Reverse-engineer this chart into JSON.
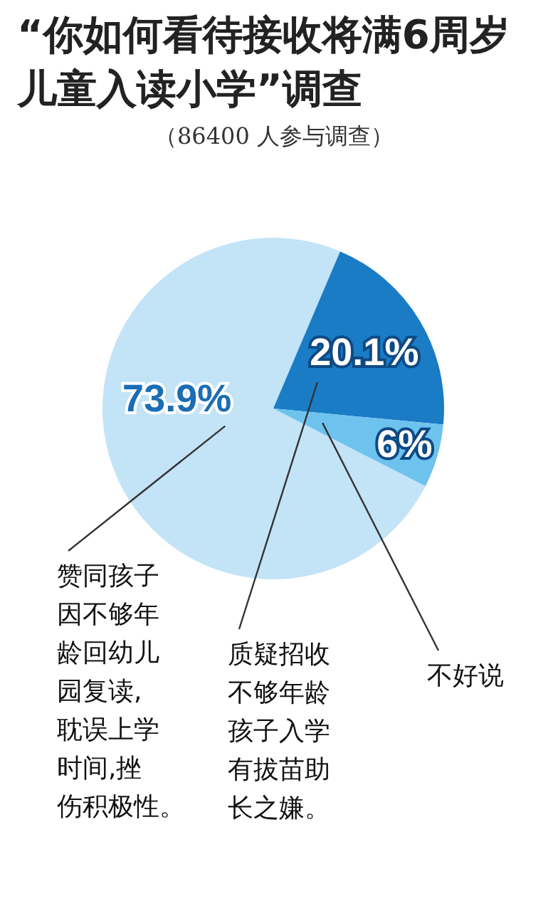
{
  "chart_data": {
    "type": "pie",
    "title": "“你如何看待接收将满6周岁儿童入读小学”调查",
    "subtitle": "（86400 人参与调查）",
    "categories": [
      "赞同孩子因不够年龄回幼儿园复读,耽误上学时间,挫伤积极性。",
      "质疑招收不够年龄孩子入学有拔苗助长之嫌。",
      "不好说"
    ],
    "values": [
      73.9,
      20.1,
      6
    ],
    "colors": [
      "#c3e3f7",
      "#1b7cc6",
      "#6ec3ee"
    ],
    "value_labels": [
      "73.9%",
      "20.1%",
      "6%"
    ]
  }
}
